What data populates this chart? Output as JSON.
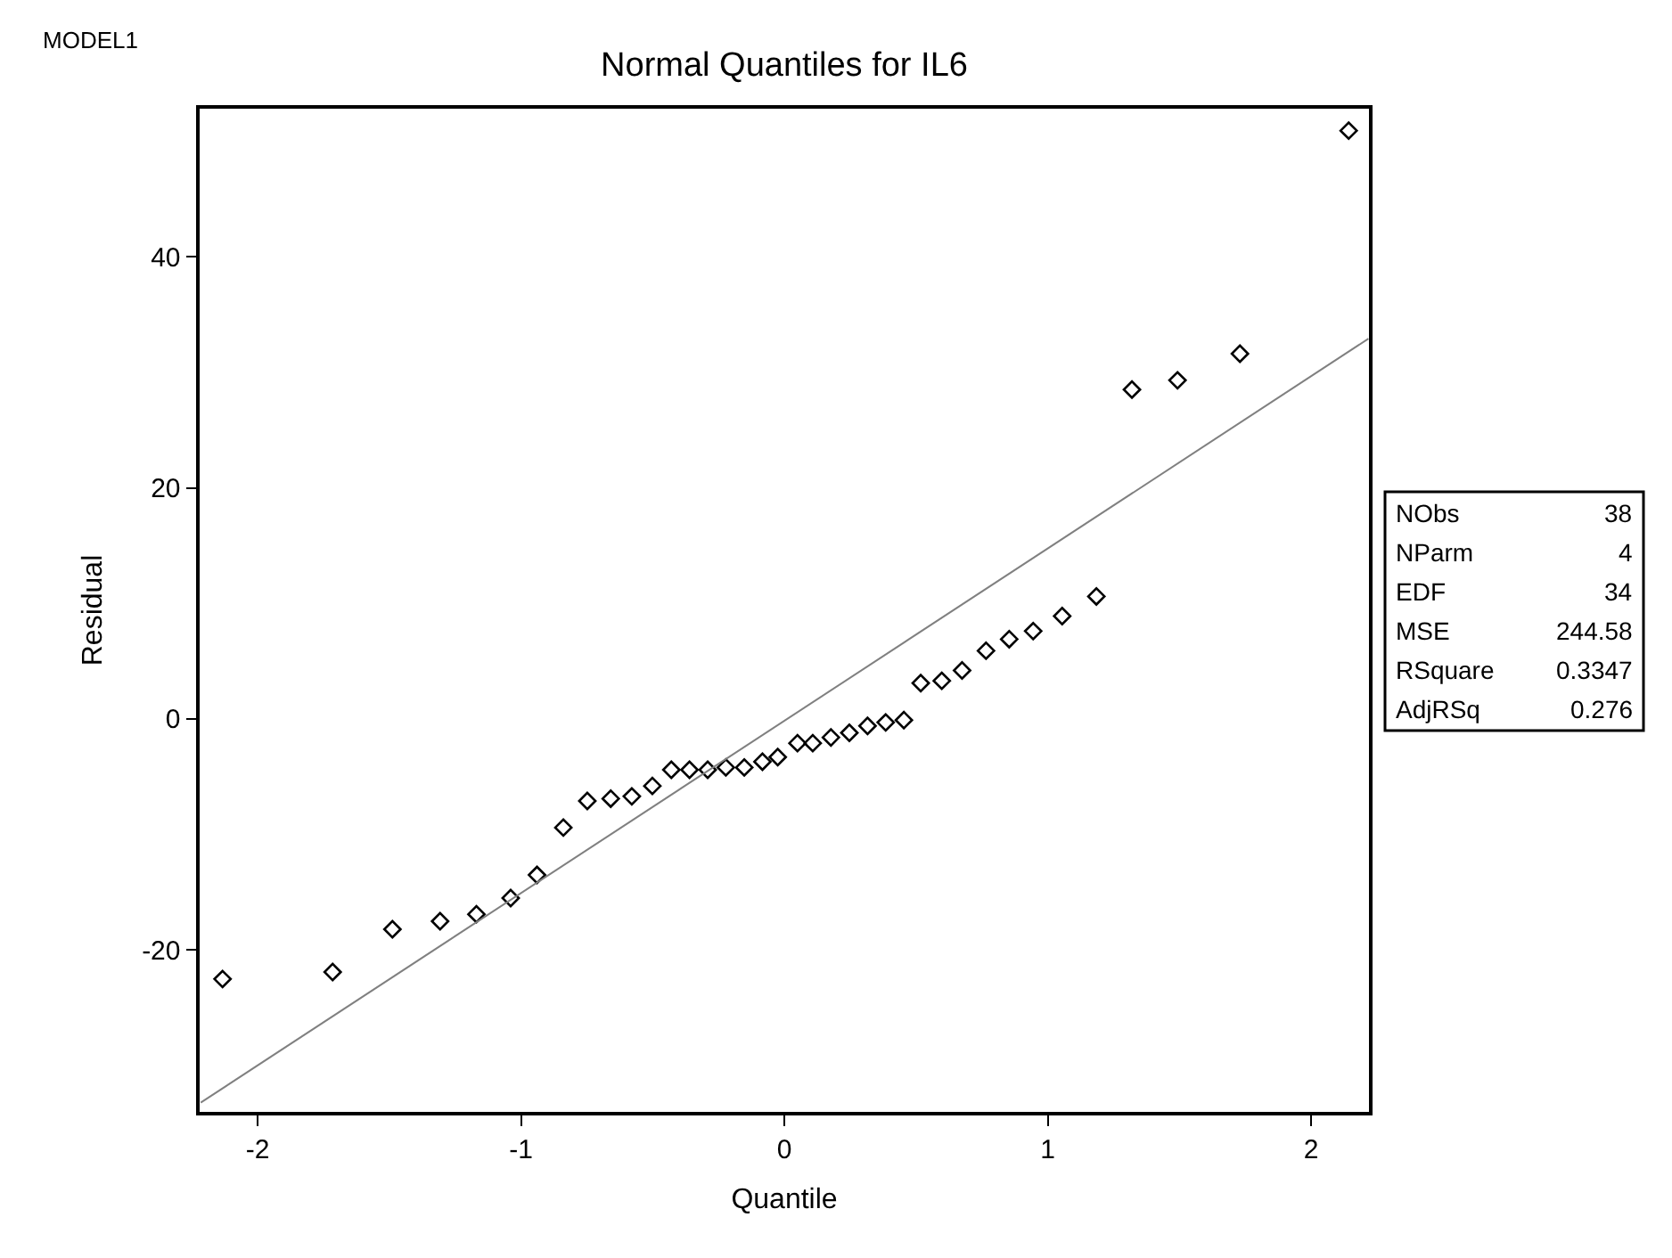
{
  "chart_data": {
    "type": "scatter",
    "title": "Normal Quantiles for IL6",
    "xlabel": "Quantile",
    "ylabel": "Residual",
    "annotations": [
      "MODEL1",
      "NObs 38",
      "NParm 4",
      "EDF 34",
      "MSE 244.58",
      "RSquare 0.3347",
      "AdjRSq 0.276"
    ],
    "xlim": [
      -2.22,
      2.22
    ],
    "ylim": [
      -34,
      52.8
    ],
    "xticks": [
      -2,
      -1,
      0,
      1,
      2
    ],
    "yticks": [
      -20,
      0,
      20,
      40
    ],
    "series": [
      {
        "color": "#000000",
        "marker": "diamond",
        "x": [
          -2.133,
          -1.715,
          -1.488,
          -1.307,
          -1.169,
          -1.039,
          -0.939,
          -0.839,
          -0.748,
          -0.659,
          -0.579,
          -0.501,
          -0.429,
          -0.36,
          -0.291,
          -0.222,
          -0.152,
          -0.083,
          -0.025,
          0.05,
          0.108,
          0.177,
          0.247,
          0.316,
          0.385,
          0.454,
          0.518,
          0.598,
          0.675,
          0.766,
          0.854,
          0.945,
          1.055,
          1.185,
          1.32,
          1.493,
          1.73,
          2.143
        ],
        "values": [
          -22.5,
          -21.9,
          -18.2,
          -17.5,
          -16.9,
          -15.5,
          -13.5,
          -9.4,
          -7.1,
          -6.9,
          -6.7,
          -5.8,
          -4.4,
          -4.4,
          -4.4,
          -4.2,
          -4.2,
          -3.7,
          -3.3,
          -2.1,
          -2.1,
          -1.6,
          -1.2,
          -0.6,
          -0.3,
          -0.1,
          3.1,
          3.3,
          4.2,
          5.9,
          6.9,
          7.6,
          8.9,
          10.6,
          28.5,
          29.3,
          31.6,
          50.9
        ]
      },
      {
        "type": "line",
        "color": "#808080",
        "marker": "none",
        "line_style": "solid",
        "x": [
          -2.216,
          2.218
        ],
        "values": [
          -33.2,
          32.9
        ]
      }
    ]
  }
}
